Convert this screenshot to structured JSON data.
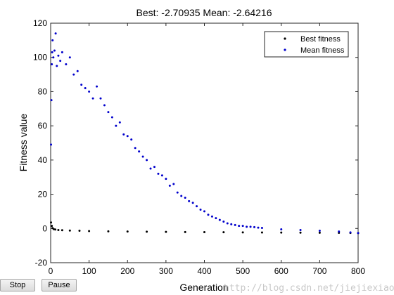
{
  "window": {
    "stop_label": "Stop",
    "pause_label": "Pause",
    "watermark": "http://blog.csdn.net/jiejiexiao"
  },
  "colors": {
    "best": "#000000",
    "mean": "#0000cc",
    "axis": "#262626",
    "background": "#ffffff"
  },
  "chart_data": {
    "type": "scatter",
    "title": "Best: -2.70935 Mean: -2.64216",
    "xlabel": "Generation",
    "ylabel": "Fitness value",
    "xlim": [
      0,
      800
    ],
    "ylim": [
      -20,
      120
    ],
    "xticks": [
      0,
      100,
      200,
      300,
      400,
      500,
      600,
      700,
      800
    ],
    "yticks": [
      -20,
      0,
      20,
      40,
      60,
      80,
      100,
      120
    ],
    "grid": false,
    "legend_position": "top-right",
    "series": [
      {
        "name": "Best fitness",
        "color": "#000000",
        "x": [
          1,
          3,
          5,
          8,
          12,
          20,
          30,
          50,
          75,
          100,
          150,
          200,
          250,
          300,
          350,
          400,
          450,
          500,
          550,
          600,
          650,
          700,
          750,
          780,
          800
        ],
        "y": [
          3.5,
          1.5,
          0.2,
          -0.4,
          -0.6,
          -0.9,
          -1.0,
          -1.2,
          -1.3,
          -1.5,
          -1.7,
          -1.8,
          -1.9,
          -2.0,
          -2.1,
          -2.15,
          -2.2,
          -2.3,
          -2.35,
          -2.4,
          -2.45,
          -2.5,
          -2.55,
          -2.6,
          -2.7
        ]
      },
      {
        "name": "Mean fitness",
        "color": "#0000cc",
        "x": [
          1,
          2,
          3,
          4,
          5,
          7,
          10,
          13,
          16,
          20,
          25,
          30,
          40,
          50,
          60,
          70,
          80,
          90,
          100,
          110,
          120,
          130,
          140,
          150,
          160,
          170,
          180,
          190,
          200,
          210,
          220,
          230,
          240,
          250,
          260,
          270,
          280,
          290,
          300,
          310,
          320,
          330,
          340,
          350,
          360,
          370,
          380,
          390,
          400,
          410,
          420,
          430,
          440,
          450,
          460,
          470,
          480,
          490,
          500,
          510,
          520,
          530,
          540,
          550,
          600,
          650,
          700,
          750,
          780,
          800
        ],
        "y": [
          49,
          75,
          96,
          103,
          110,
          100,
          104,
          114,
          95,
          101,
          98,
          103,
          96,
          100,
          90,
          92,
          84,
          82,
          80,
          76,
          83,
          76,
          72,
          68,
          65,
          60,
          62,
          55,
          54,
          52,
          47,
          45,
          42,
          40,
          35,
          36,
          32,
          31,
          29,
          25,
          26,
          21,
          19,
          18,
          16,
          15,
          13,
          11,
          10,
          8,
          7,
          6,
          5,
          4,
          3,
          2.5,
          2,
          1.5,
          1.5,
          1,
          1,
          0.8,
          0.5,
          0.3,
          -0.5,
          -0.9,
          -1.3,
          -1.8,
          -2.3,
          -2.64
        ]
      }
    ]
  }
}
